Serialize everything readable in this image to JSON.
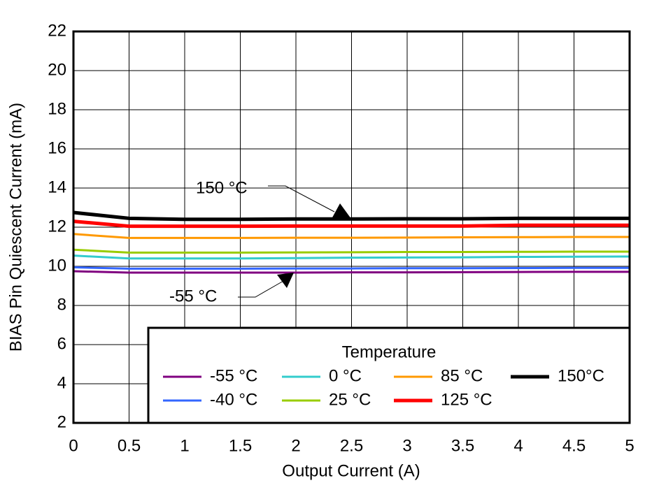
{
  "chart_data": {
    "type": "line",
    "x_label": "Output Current (A)",
    "y_label": "BIAS Pin Quiescent Current (mA)",
    "x": [
      0,
      0.5,
      1,
      1.5,
      2,
      2.5,
      3,
      3.5,
      4,
      4.5,
      5
    ],
    "series": [
      {
        "name": "-55 °C",
        "color": "#800080",
        "values": [
          9.75,
          9.68,
          9.68,
          9.68,
          9.68,
          9.69,
          9.69,
          9.7,
          9.71,
          9.72,
          9.72
        ]
      },
      {
        "name": "-40 °C",
        "color": "#3366ff",
        "values": [
          9.95,
          9.88,
          9.88,
          9.88,
          9.89,
          9.89,
          9.9,
          9.9,
          9.91,
          9.92,
          9.92
        ]
      },
      {
        "name": "0 °C",
        "color": "#33cccc",
        "values": [
          10.55,
          10.4,
          10.4,
          10.4,
          10.42,
          10.44,
          10.45,
          10.46,
          10.48,
          10.49,
          10.5
        ]
      },
      {
        "name": "25 °C",
        "color": "#99cc00",
        "values": [
          10.85,
          10.7,
          10.7,
          10.7,
          10.71,
          10.72,
          10.73,
          10.73,
          10.74,
          10.75,
          10.75
        ]
      },
      {
        "name": "85 °C",
        "color": "#ff9900",
        "values": [
          11.65,
          11.45,
          11.45,
          11.45,
          11.46,
          11.46,
          11.47,
          11.48,
          11.49,
          11.5,
          11.5
        ]
      },
      {
        "name": "125 °C",
        "color": "#ff0000",
        "values": [
          12.3,
          12.05,
          12.05,
          12.05,
          12.06,
          12.06,
          12.06,
          12.06,
          12.1,
          12.1,
          12.1
        ]
      },
      {
        "name": "150°C",
        "color": "#000000",
        "values": [
          12.75,
          12.45,
          12.4,
          12.4,
          12.42,
          12.42,
          12.43,
          12.43,
          12.45,
          12.45,
          12.45
        ]
      }
    ],
    "legend_title": "Temperature",
    "annotations": [
      "150 °C",
      "-55 °C"
    ],
    "xlim": [
      0,
      5
    ],
    "xticks": [
      0,
      0.5,
      1,
      1.5,
      2,
      2.5,
      3,
      3.5,
      4,
      4.5,
      5
    ],
    "ylim": [
      2,
      22
    ],
    "yticks": [
      2,
      4,
      6,
      8,
      10,
      12,
      14,
      16,
      18,
      20,
      22
    ],
    "grid": true
  }
}
